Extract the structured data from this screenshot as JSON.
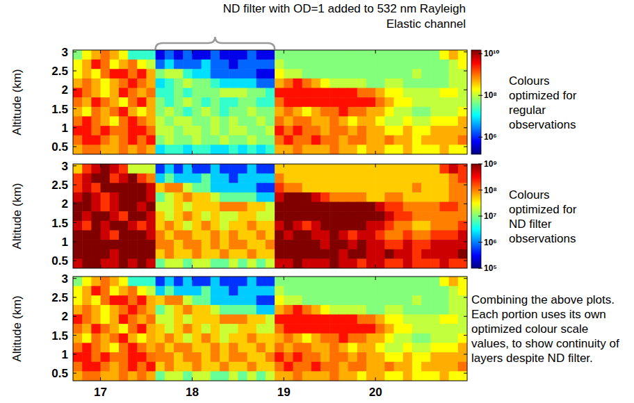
{
  "chart_data": {
    "type": "heatmap",
    "ylabel": "Altitude (km)",
    "xlim": [
      16.7,
      21
    ],
    "ylim": [
      0.3,
      3.05
    ],
    "xticks": [
      17,
      18,
      19,
      20
    ],
    "yticks": [
      0.5,
      1,
      1.5,
      2,
      2.5,
      3
    ],
    "log": true,
    "x_bins": [
      16.7,
      16.8,
      16.9,
      17,
      17.1,
      17.2,
      17.3,
      17.4,
      17.5,
      17.6,
      17.7,
      17.8,
      17.9,
      18,
      18.1,
      18.2,
      18.3,
      18.4,
      18.5,
      18.6,
      18.7,
      18.8,
      18.9,
      19,
      19.1,
      19.2,
      19.3,
      19.4,
      19.5,
      19.6,
      19.7,
      19.8,
      19.9,
      20,
      20.1,
      20.2,
      20.3,
      20.4,
      20.5,
      20.6,
      20.7,
      20.8,
      20.9,
      21
    ],
    "y_bins": [
      3.05,
      2.8,
      2.55,
      2.3,
      2.05,
      1.8,
      1.55,
      1.3,
      1.05,
      0.8,
      0.55,
      0.3
    ],
    "cells": [
      [
        50000000.0,
        200000000.0,
        500000000.0,
        1000000000.0,
        500000000.0,
        200000000.0,
        20000000.0,
        20000000.0,
        20000000.0,
        500000.0,
        2000000.0,
        500000.0,
        2000000.0,
        500000.0,
        500000.0,
        2000000.0,
        500000.0,
        500000.0,
        500000.0,
        2000000.0,
        500000.0,
        500000.0,
        50000000.0,
        50000000.0,
        50000000.0,
        50000000.0,
        50000000.0,
        50000000.0,
        50000000.0,
        50000000.0,
        50000000.0,
        50000000.0,
        50000000.0,
        50000000.0,
        50000000.0,
        50000000.0,
        50000000.0,
        50000000.0,
        50000000.0,
        50000000.0,
        200000000.0,
        500000000.0,
        200000000.0
      ],
      [
        200000000.0,
        500000000.0,
        3000000000.0,
        1000000000.0,
        200000000.0,
        500000000.0,
        1000000000.0,
        200000000.0,
        100000000.0,
        2000000.0,
        8000000.0,
        2000000.0,
        2000000.0,
        2000000.0,
        8000000.0,
        2000000.0,
        2000000.0,
        500000.0,
        2000000.0,
        2000000.0,
        2000000.0,
        2000000.0,
        100000000.0,
        50000000.0,
        50000000.0,
        50000000.0,
        50000000.0,
        50000000.0,
        50000000.0,
        50000000.0,
        50000000.0,
        50000000.0,
        50000000.0,
        50000000.0,
        50000000.0,
        50000000.0,
        50000000.0,
        50000000.0,
        50000000.0,
        50000000.0,
        50000000.0,
        100000000.0,
        200000000.0
      ],
      [
        200000000.0,
        500000000.0,
        200000000.0,
        1000000000.0,
        3000000000.0,
        3000000000.0,
        1000000000.0,
        3000000000.0,
        500000000.0,
        50000000.0,
        100000000.0,
        100000000.0,
        20000000.0,
        8000000.0,
        8000000.0,
        2000000.0,
        2000000.0,
        2000000.0,
        2000000.0,
        2000000.0,
        500000.0,
        500000.0,
        200000000.0,
        100000000.0,
        100000000.0,
        50000000.0,
        50000000.0,
        50000000.0,
        50000000.0,
        50000000.0,
        50000000.0,
        50000000.0,
        50000000.0,
        50000000.0,
        50000000.0,
        50000000.0,
        50000000.0,
        100000000.0,
        50000000.0,
        50000000.0,
        50000000.0,
        100000000.0,
        100000000.0
      ],
      [
        500000000.0,
        1000000000.0,
        500000000.0,
        200000000.0,
        500000000.0,
        1000000000.0,
        3000000000.0,
        1000000000.0,
        500000000.0,
        8000000.0,
        20000000.0,
        50000000.0,
        100000000.0,
        50000000.0,
        50000000.0,
        20000000.0,
        8000000.0,
        8000000.0,
        8000000.0,
        8000000.0,
        2000000.0,
        2000000.0,
        500000000.0,
        1000000000.0,
        3000000000.0,
        1000000000.0,
        500000000.0,
        200000000.0,
        100000000.0,
        100000000.0,
        100000000.0,
        100000000.0,
        50000000.0,
        50000000.0,
        100000000.0,
        100000000.0,
        50000000.0,
        50000000.0,
        50000000.0,
        50000000.0,
        50000000.0,
        100000000.0,
        100000000.0
      ],
      [
        3000000000.0,
        1000000000.0,
        500000000.0,
        200000000.0,
        500000000.0,
        3000000000.0,
        1000000000.0,
        500000000.0,
        1000000000.0,
        20000000.0,
        20000000.0,
        50000000.0,
        20000000.0,
        50000000.0,
        50000000.0,
        50000000.0,
        100000000.0,
        100000000.0,
        100000000.0,
        50000000.0,
        50000000.0,
        20000000.0,
        3000000000.0,
        3000000000.0,
        3000000000.0,
        3000000000.0,
        3000000000.0,
        3000000000.0,
        3000000000.0,
        3000000000.0,
        3000000000.0,
        1000000000.0,
        1000000000.0,
        500000000.0,
        200000000.0,
        200000000.0,
        100000000.0,
        100000000.0,
        100000000.0,
        100000000.0,
        200000000.0,
        200000000.0,
        100000000.0
      ],
      [
        1000000000.0,
        500000000.0,
        3000000000.0,
        1000000000.0,
        500000000.0,
        200000000.0,
        1000000000.0,
        3000000000.0,
        500000000.0,
        50000000.0,
        20000000.0,
        50000000.0,
        100000000.0,
        50000000.0,
        20000000.0,
        50000000.0,
        20000000.0,
        20000000.0,
        50000000.0,
        50000000.0,
        20000000.0,
        20000000.0,
        1000000000.0,
        3000000000.0,
        3000000000.0,
        3000000000.0,
        3000000000.0,
        3000000000.0,
        3000000000.0,
        3000000000.0,
        3000000000.0,
        3000000000.0,
        3000000000.0,
        1000000000.0,
        500000000.0,
        200000000.0,
        200000000.0,
        100000000.0,
        100000000.0,
        100000000.0,
        100000000.0,
        100000000.0,
        100000000.0
      ],
      [
        500000000.0,
        200000000.0,
        1000000000.0,
        500000000.0,
        1000000000.0,
        3000000000.0,
        500000000.0,
        200000000.0,
        500000000.0,
        50000000.0,
        100000000.0,
        50000000.0,
        20000000.0,
        50000000.0,
        100000000.0,
        50000000.0,
        20000000.0,
        50000000.0,
        50000000.0,
        100000000.0,
        50000000.0,
        50000000.0,
        500000000.0,
        1000000000.0,
        500000000.0,
        200000000.0,
        500000000.0,
        1000000000.0,
        1000000000.0,
        3000000000.0,
        1000000000.0,
        1000000000.0,
        500000000.0,
        500000000.0,
        200000000.0,
        100000000.0,
        100000000.0,
        50000000.0,
        50000000.0,
        100000000.0,
        100000000.0,
        100000000.0,
        200000000.0
      ],
      [
        1000000000.0,
        3000000000.0,
        1000000000.0,
        500000000.0,
        200000000.0,
        1000000000.0,
        3000000000.0,
        1000000000.0,
        500000000.0,
        100000000.0,
        50000000.0,
        100000000.0,
        100000000.0,
        50000000.0,
        50000000.0,
        100000000.0,
        50000000.0,
        100000000.0,
        50000000.0,
        50000000.0,
        100000000.0,
        50000000.0,
        1000000000.0,
        500000000.0,
        1000000000.0,
        1000000000.0,
        500000000.0,
        500000000.0,
        1000000000.0,
        500000000.0,
        200000000.0,
        500000000.0,
        500000000.0,
        200000000.0,
        100000000.0,
        100000000.0,
        200000000.0,
        100000000.0,
        100000000.0,
        200000000.0,
        200000000.0,
        200000000.0,
        500000000.0
      ],
      [
        3000000000.0,
        3000000000.0,
        1000000000.0,
        3000000000.0,
        1000000000.0,
        1000000000.0,
        3000000000.0,
        3000000000.0,
        1000000000.0,
        100000000.0,
        100000000.0,
        50000000.0,
        100000000.0,
        100000000.0,
        50000000.0,
        100000000.0,
        50000000.0,
        100000000.0,
        100000000.0,
        50000000.0,
        50000000.0,
        100000000.0,
        3000000000.0,
        1000000000.0,
        3000000000.0,
        1000000000.0,
        1000000000.0,
        500000000.0,
        1000000000.0,
        1000000000.0,
        500000000.0,
        1000000000.0,
        500000000.0,
        500000000.0,
        200000000.0,
        200000000.0,
        500000000.0,
        200000000.0,
        200000000.0,
        500000000.0,
        500000000.0,
        500000000.0,
        500000000.0
      ],
      [
        1000000000.0,
        3000000000.0,
        3000000000.0,
        1000000000.0,
        500000000.0,
        1000000000.0,
        3000000000.0,
        1000000000.0,
        3000000000.0,
        50000000.0,
        100000000.0,
        50000000.0,
        50000000.0,
        100000000.0,
        50000000.0,
        50000000.0,
        100000000.0,
        50000000.0,
        50000000.0,
        100000000.0,
        50000000.0,
        50000000.0,
        1000000000.0,
        3000000000.0,
        1000000000.0,
        1000000000.0,
        3000000000.0,
        1000000000.0,
        1000000000.0,
        500000000.0,
        1000000000.0,
        1000000000.0,
        500000000.0,
        500000000.0,
        1000000000.0,
        500000000.0,
        500000000.0,
        200000000.0,
        500000000.0,
        500000000.0,
        500000000.0,
        500000000.0,
        1000000000.0
      ],
      [
        500000000.0,
        1000000000.0,
        1000000000.0,
        500000000.0,
        500000000.0,
        1000000000.0,
        500000000.0,
        1000000000.0,
        500000000.0,
        8000000.0,
        20000000.0,
        20000000.0,
        8000000.0,
        20000000.0,
        20000000.0,
        8000000.0,
        8000000.0,
        20000000.0,
        8000000.0,
        20000000.0,
        8000000.0,
        20000000.0,
        500000000.0,
        500000000.0,
        1000000000.0,
        500000000.0,
        500000000.0,
        500000000.0,
        1000000000.0,
        500000000.0,
        500000000.0,
        200000000.0,
        500000000.0,
        500000000.0,
        200000000.0,
        200000000.0,
        500000000.0,
        200000000.0,
        200000000.0,
        200000000.0,
        500000000.0,
        200000000.0,
        200000000.0
      ]
    ],
    "nd_filter": {
      "xlim": [
        17.6,
        18.9
      ],
      "label": "ND filter with OD=1 added to 532 nm Rayleigh Elastic channel"
    },
    "panels": [
      {
        "colorbar": {
          "range": [
            150000.0,
            15000000000.0
          ],
          "ticks": [
            {
              "value": 1000000.0,
              "label": "10⁶"
            },
            {
              "value": 100000000.0,
              "label": "10⁸"
            },
            {
              "value": 10000000000.0,
              "label": "10¹⁰"
            }
          ]
        },
        "annotation": "Colours optimized for regular observations"
      },
      {
        "colorbar": {
          "range": [
            100000.0,
            1000000000.0
          ],
          "ticks": [
            {
              "value": 100000.0,
              "label": "10⁵"
            },
            {
              "value": 1000000.0,
              "label": "10⁶"
            },
            {
              "value": 10000000.0,
              "label": "10⁷"
            },
            {
              "value": 100000000.0,
              "label": "10⁸"
            },
            {
              "value": 1000000000.0,
              "label": "10⁹"
            }
          ]
        },
        "annotation": "Colours optimized for ND filter observations"
      },
      {
        "annotation": "Combining the above plots. Each portion uses its own optimized colour scale values, to show continuity of layers despite ND filter."
      }
    ]
  }
}
